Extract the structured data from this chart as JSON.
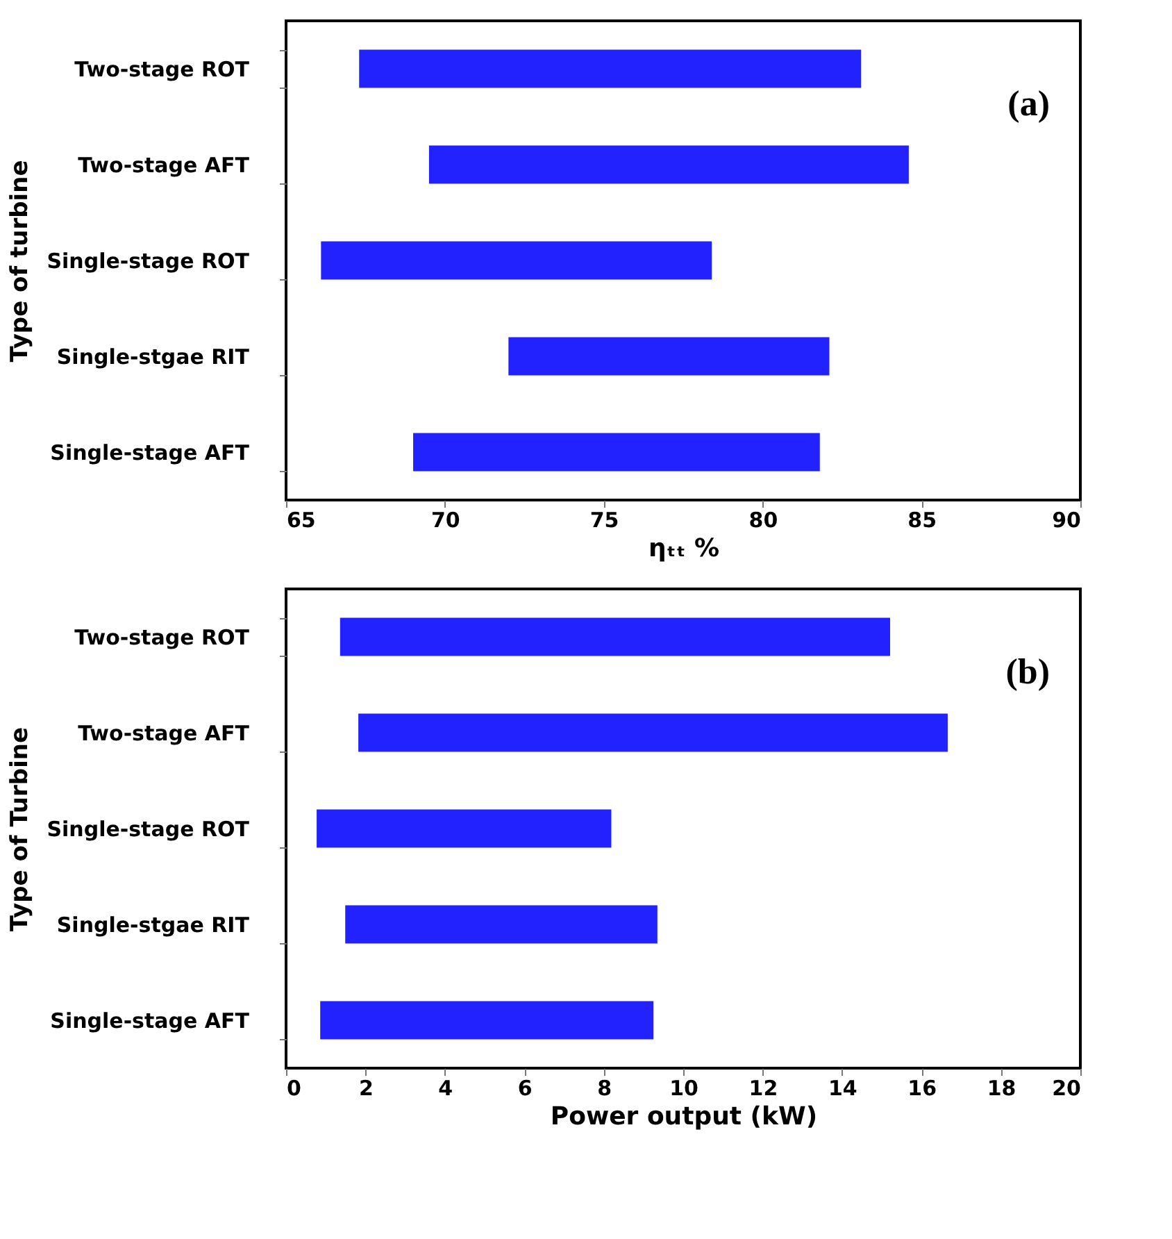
{
  "chart_data": [
    {
      "type": "bar",
      "orientation": "horizontal",
      "categories": [
        "Two-stage ROT",
        "Two-stage AFT",
        "Single-stage ROT",
        "Single-stgae RIT",
        "Single-stage AFT"
      ],
      "base": [
        67.3,
        69.5,
        66.1,
        72.0,
        69.0
      ],
      "values": [
        15.8,
        15.1,
        12.3,
        10.1,
        12.8
      ],
      "color": "#2222ff",
      "xlim": [
        65,
        90
      ],
      "xticks": [
        65,
        70,
        75,
        80,
        85,
        90
      ],
      "xlabel": "ηₜₜ %",
      "ylabel": "Type of turbine",
      "annotations": [
        "(a)"
      ]
    },
    {
      "type": "bar",
      "orientation": "horizontal",
      "categories": [
        "Two-stage ROT",
        "Two-stage AFT",
        "Single-stage ROT",
        "Single-stgae RIT",
        "Single-stage AFT"
      ],
      "base": [
        1.36,
        1.82,
        0.77,
        1.49,
        0.86
      ],
      "values": [
        13.85,
        14.84,
        7.42,
        7.86,
        8.39
      ],
      "color": "#2222ff",
      "xlim": [
        0,
        20
      ],
      "xticks": [
        0,
        2,
        4,
        6,
        8,
        10,
        12,
        14,
        16,
        18,
        20
      ],
      "xlabel": "Power output (kW)",
      "ylabel": "Type of Turbine",
      "annotations": [
        "(b)"
      ]
    }
  ]
}
